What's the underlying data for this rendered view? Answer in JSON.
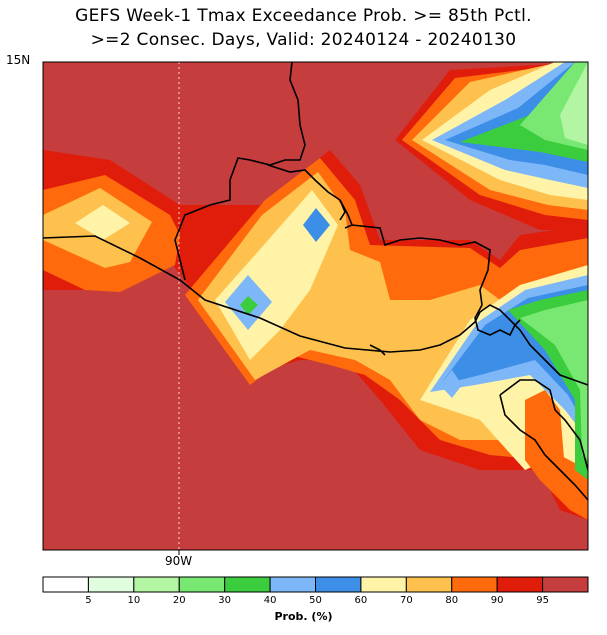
{
  "title_line1": "GEFS Week-1 Tmax Exceedance Prob. >= 85th Pctl.",
  "title_line2": ">=2 Consec. Days, Valid: 20240124 - 20240130",
  "lat_label": "15N",
  "lon_label": "90W",
  "legend": {
    "title": "Prob. (%)",
    "colors": [
      "#ffffff",
      "#e1fde0",
      "#b4f5a4",
      "#79e873",
      "#3bcd3e",
      "#7db7f8",
      "#3c8ee6",
      "#fff3a8",
      "#fec14d",
      "#ff6a0c",
      "#e01d0b",
      "#c63d3d"
    ],
    "ticks": [
      "5",
      "10",
      "20",
      "30",
      "40",
      "50",
      "60",
      "70",
      "80",
      "90",
      "95"
    ]
  },
  "palette": {
    "dark_red": "#c63d3d",
    "red": "#e01d0b",
    "orange": "#ff6a0c",
    "light_orange": "#fec14d",
    "yellow": "#fff3a8",
    "blue": "#3c8ee6",
    "light_blue": "#7db7f8",
    "green": "#3bcd3e",
    "light_green": "#79e873",
    "pale_green": "#b4f5a4"
  }
}
